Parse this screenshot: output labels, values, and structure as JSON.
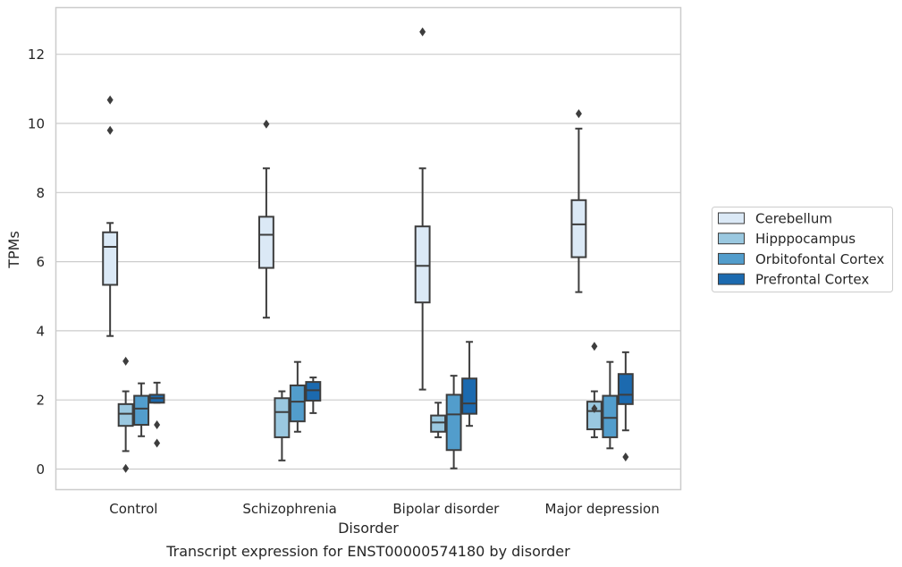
{
  "caption": "Transcript expression for ENST00000574180 by disorder",
  "chart_data": {
    "type": "box",
    "xlabel": "Disorder",
    "ylabel": "TPMs",
    "ylim": [
      -0.6,
      13.4
    ],
    "yticks": [
      0,
      2,
      4,
      6,
      8,
      10,
      12
    ],
    "grid": "horizontal",
    "legend_position": "right",
    "categories": [
      "Control",
      "Schizophrenia",
      "Bipolar disorder",
      "Major depression"
    ],
    "series": [
      {
        "name": "Cerebellum",
        "color": "#dbe9f6",
        "boxes": [
          {
            "whislo": 3.85,
            "q1": 5.33,
            "med": 6.43,
            "q3": 6.85,
            "whishi": 7.12,
            "fliers": [
              9.8,
              10.68
            ]
          },
          {
            "whislo": 4.38,
            "q1": 5.82,
            "med": 6.78,
            "q3": 7.3,
            "whishi": 8.7,
            "fliers": [
              9.98
            ]
          },
          {
            "whislo": 2.3,
            "q1": 4.82,
            "med": 5.88,
            "q3": 7.02,
            "whishi": 8.7,
            "fliers": [
              12.65
            ]
          },
          {
            "whislo": 5.12,
            "q1": 6.13,
            "med": 7.08,
            "q3": 7.78,
            "whishi": 9.85,
            "fliers": [
              10.28
            ]
          }
        ]
      },
      {
        "name": "Hipppocampus",
        "color": "#9ac8e0",
        "boxes": [
          {
            "whislo": 0.52,
            "q1": 1.25,
            "med": 1.6,
            "q3": 1.88,
            "whishi": 2.25,
            "fliers": [
              3.12,
              0.02
            ]
          },
          {
            "whislo": 0.25,
            "q1": 0.92,
            "med": 1.65,
            "q3": 2.05,
            "whishi": 2.25,
            "fliers": []
          },
          {
            "whislo": 0.92,
            "q1": 1.08,
            "med": 1.35,
            "q3": 1.55,
            "whishi": 1.92,
            "fliers": []
          },
          {
            "whislo": 0.92,
            "q1": 1.15,
            "med": 1.68,
            "q3": 1.95,
            "whishi": 2.25,
            "fliers": [
              1.75,
              3.55
            ]
          }
        ]
      },
      {
        "name": "Orbitofontal Cortex",
        "color": "#529dcc",
        "boxes": [
          {
            "whislo": 0.95,
            "q1": 1.28,
            "med": 1.75,
            "q3": 2.12,
            "whishi": 2.48,
            "fliers": []
          },
          {
            "whislo": 1.08,
            "q1": 1.38,
            "med": 1.95,
            "q3": 2.42,
            "whishi": 3.1,
            "fliers": []
          },
          {
            "whislo": 0.02,
            "q1": 0.55,
            "med": 1.58,
            "q3": 2.15,
            "whishi": 2.7,
            "fliers": []
          },
          {
            "whislo": 0.6,
            "q1": 0.92,
            "med": 1.48,
            "q3": 2.12,
            "whishi": 3.1,
            "fliers": []
          }
        ]
      },
      {
        "name": "Prefrontal Cortex",
        "color": "#1c6aaf",
        "boxes": [
          {
            "whislo": 1.92,
            "q1": 1.92,
            "med": 2.05,
            "q3": 2.15,
            "whishi": 2.5,
            "fliers": [
              1.28,
              0.75
            ]
          },
          {
            "whislo": 1.62,
            "q1": 1.98,
            "med": 2.28,
            "q3": 2.52,
            "whishi": 2.65,
            "fliers": []
          },
          {
            "whislo": 1.25,
            "q1": 1.6,
            "med": 1.9,
            "q3": 2.62,
            "whishi": 3.68,
            "fliers": []
          },
          {
            "whislo": 1.12,
            "q1": 1.88,
            "med": 2.15,
            "q3": 2.75,
            "whishi": 3.38,
            "fliers": [
              0.35
            ]
          }
        ]
      }
    ]
  }
}
